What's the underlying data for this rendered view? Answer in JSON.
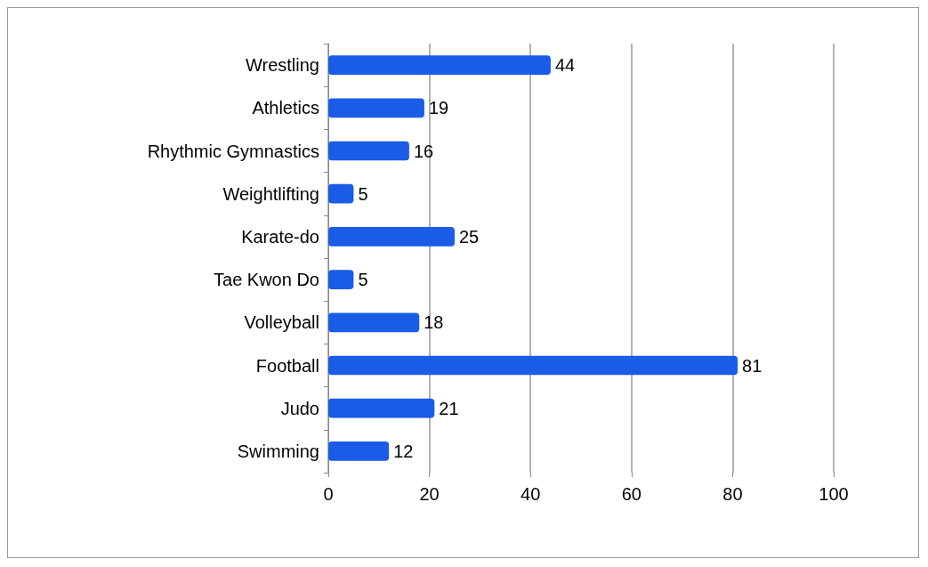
{
  "chart_data": {
    "type": "bar",
    "orientation": "horizontal",
    "categories": [
      "Wrestling",
      "Athletics",
      "Rhythmic Gymnastics",
      "Weightlifting",
      "Karate-do",
      "Tae Kwon Do",
      "Volleyball",
      "Football",
      "Judo",
      "Swimming"
    ],
    "values": [
      44,
      19,
      16,
      5,
      25,
      5,
      18,
      81,
      21,
      12
    ],
    "color": "#1a5ce6",
    "xlim": [
      0,
      100
    ],
    "xticks": [
      0,
      20,
      40,
      60,
      80,
      100
    ],
    "grid": "x",
    "data_labels": true
  }
}
